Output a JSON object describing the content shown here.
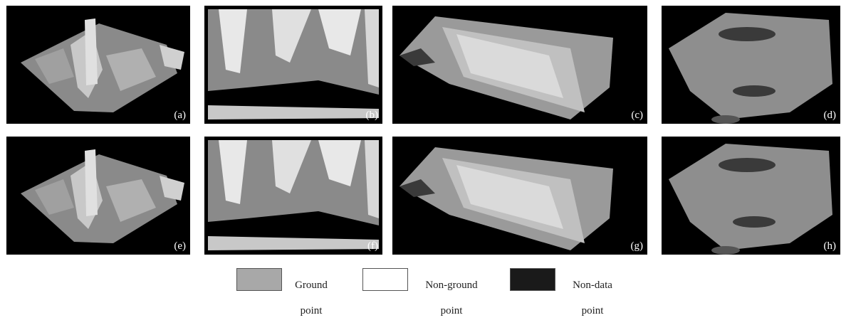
{
  "panels": [
    {
      "label": "(a)"
    },
    {
      "label": "(b)"
    },
    {
      "label": "(c)"
    },
    {
      "label": "(d)"
    },
    {
      "label": "(e)"
    },
    {
      "label": "(f)"
    },
    {
      "label": "(g)"
    },
    {
      "label": "(h)"
    }
  ],
  "legend": {
    "items": [
      {
        "line1": "Ground",
        "line2": "point",
        "color": "#a8a8a8"
      },
      {
        "line1": "Non-ground",
        "line2": "point",
        "color": "#ffffff"
      },
      {
        "line1": "Non-data",
        "line2": "point",
        "color": "#1a1a1a"
      }
    ]
  }
}
